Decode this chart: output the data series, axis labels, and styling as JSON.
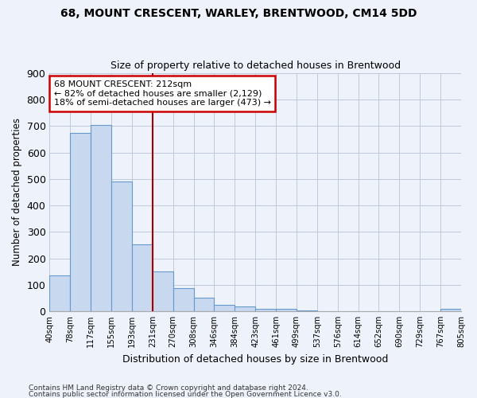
{
  "title1": "68, MOUNT CRESCENT, WARLEY, BRENTWOOD, CM14 5DD",
  "title2": "Size of property relative to detached houses in Brentwood",
  "xlabel": "Distribution of detached houses by size in Brentwood",
  "ylabel": "Number of detached properties",
  "bar_values": [
    135,
    675,
    705,
    492,
    252,
    150,
    88,
    50,
    25,
    18,
    10,
    8,
    3,
    1,
    1,
    0,
    0,
    0,
    0,
    8
  ],
  "bar_labels": [
    "40sqm",
    "78sqm",
    "117sqm",
    "155sqm",
    "193sqm",
    "231sqm",
    "270sqm",
    "308sqm",
    "346sqm",
    "384sqm",
    "423sqm",
    "461sqm",
    "499sqm",
    "537sqm",
    "576sqm",
    "614sqm",
    "652sqm",
    "690sqm",
    "729sqm",
    "767sqm",
    "805sqm"
  ],
  "ylim": [
    0,
    900
  ],
  "yticks": [
    0,
    100,
    200,
    300,
    400,
    500,
    600,
    700,
    800,
    900
  ],
  "bar_color": "#c8d8ef",
  "bar_edge_color": "#6699cc",
  "vline_color": "#aa0000",
  "vline_x": 5.0,
  "annotation_title": "68 MOUNT CRESCENT: 212sqm",
  "annotation_line1": "← 82% of detached houses are smaller (2,129)",
  "annotation_line2": "18% of semi-detached houses are larger (473) →",
  "annotation_box_color": "#ffffff",
  "annotation_box_edge_color": "#cc0000",
  "footer1": "Contains HM Land Registry data © Crown copyright and database right 2024.",
  "footer2": "Contains public sector information licensed under the Open Government Licence v3.0.",
  "bg_color": "#eef2fa",
  "plot_bg_color": "#eef2fa",
  "grid_color": "#c0c8dc"
}
